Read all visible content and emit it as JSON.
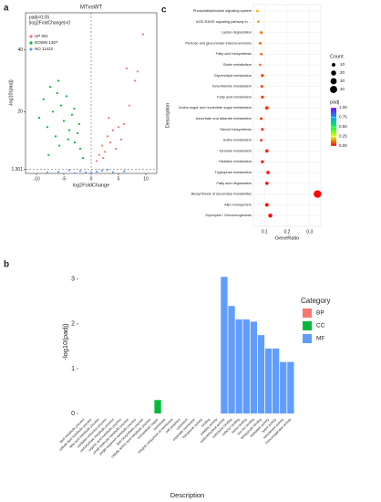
{
  "panel_labels": [
    "a",
    "b",
    "c"
  ],
  "chart_data": [
    {
      "type": "scatter",
      "title": "MTvsWT",
      "legend_title": [
        "padj<0.05",
        "|log2FoldChange|>0"
      ],
      "xlabel": "log2FoldChange",
      "ylabel": "-log10(padj)",
      "xlim": [
        -12,
        12
      ],
      "ylim": [
        0,
        52
      ],
      "xticks": [
        -10,
        -5,
        0,
        5,
        10
      ],
      "yticks": [
        1.301,
        20,
        40
      ],
      "hline": 1.301,
      "vline": 0,
      "series": [
        {
          "name": "UP 801",
          "color": "#f8766d",
          "x": [
            1,
            1.5,
            2,
            2.5,
            3,
            3.5,
            4,
            4.5,
            5,
            5.5,
            6,
            7,
            8,
            9.5,
            6.5,
            8.5,
            3.2,
            2.2
          ],
          "values": [
            4,
            6,
            9,
            7,
            12,
            10,
            14,
            8,
            15,
            11,
            16,
            22,
            30,
            45,
            34,
            33,
            18,
            5
          ]
        },
        {
          "name": "DOWN 1307",
          "color": "#00ba38",
          "x": [
            -9.5,
            -8.7,
            -8,
            -7.5,
            -7,
            -6.5,
            -6,
            -5.5,
            -5,
            -4.5,
            -4,
            -3.5,
            -3,
            -2.5,
            -2,
            -1.5,
            -6.2,
            -5.8,
            -4.2,
            -3.1,
            -2.2,
            -7.8
          ],
          "values": [
            18,
            24,
            15,
            28,
            20,
            12,
            30,
            22,
            17,
            25,
            14,
            19,
            10,
            13,
            8,
            5,
            26,
            9,
            11,
            21,
            16,
            6
          ]
        },
        {
          "name": "NO 11422",
          "color": "#619cff",
          "x": [
            -6,
            -4,
            -2,
            -1,
            0,
            1,
            2,
            4,
            -8,
            6,
            -3,
            3
          ],
          "values": [
            0.5,
            1,
            0.8,
            0.3,
            0.2,
            0.6,
            0.9,
            0.4,
            0.3,
            0.7,
            0.1,
            1.1
          ]
        }
      ]
    },
    {
      "type": "bar",
      "xlabel": "Description",
      "ylabel": "-log10(padj)",
      "legend_title": "Category",
      "group_names": [
        "BP",
        "CC",
        "MF"
      ],
      "group_colors": [
        "#f8766d",
        "#00ba38",
        "#619cff"
      ],
      "ylim": [
        0,
        3.2
      ],
      "yticks": [
        0,
        1,
        2,
        3
      ],
      "categories": [
        "lipid metabolic process",
        "cellular lipid metabolic process",
        "fatty acid metabolic process",
        "oxidation-reduction process",
        "carbohydrate metabolic process",
        "organic acid metabolic process",
        "small molecule metabolic process",
        "single-organism metabolic process",
        "lipid biosynthetic process",
        "cellular amino acid metabolic process",
        "extracellular region",
        "membrane",
        "integral component of membrane",
        "cell periphery",
        "cytoplasm",
        "organelle membrane",
        "transporter activity",
        "binding",
        "catalytic activity",
        "oxidoreductase activity",
        "coenzyme binding",
        "cofactor binding",
        "heme binding",
        "iron ion binding",
        "tetrapyrrole binding",
        "hydrolase activity",
        "lyase activity",
        "transferase activity",
        "monooxygenase activity"
      ],
      "groups": [
        0,
        0,
        0,
        0,
        0,
        0,
        0,
        0,
        0,
        0,
        1,
        1,
        1,
        1,
        1,
        1,
        2,
        2,
        2,
        2,
        2,
        2,
        2,
        2,
        2,
        2,
        2,
        2,
        2
      ],
      "values": [
        0,
        0,
        0,
        0,
        0,
        0,
        0,
        0,
        0,
        0,
        0.3,
        0,
        0,
        0,
        0,
        0,
        0,
        0,
        0,
        3.05,
        2.4,
        2.1,
        2.1,
        2.05,
        1.75,
        1.45,
        1.45,
        1.15,
        1.15
      ]
    },
    {
      "type": "dot",
      "xlabel": "GeneRatio",
      "ylabel": "Description",
      "xlim": [
        0.05,
        0.35
      ],
      "xticks": [
        0.1,
        0.2,
        0.3
      ],
      "categories": [
        "Phosphatidylinositol signaling system",
        "AGE-RAGE signaling pathway in ...",
        "Lysine degradation",
        "Pentose and glucuronate interconversions",
        "Fatty acid biosynthesis",
        "Biotin metabolism",
        "Glycerolipid metabolism",
        "beta-Alanine metabolism",
        "Fatty acid metabolism",
        "Amino sugar and nucleotide sugar metabolism",
        "Ascorbate and aldarate metabolism",
        "Steroid biosynthesis",
        "Sulfur metabolism",
        "Tyrosine metabolism",
        "Histidine metabolism",
        "Tryptophan metabolism",
        "Fatty acid degradation",
        "Biosynthesis of secondary metabolites",
        "ABC transporters",
        "Glycolysis / Gluconeogenesis"
      ],
      "values": [
        0.068,
        0.072,
        0.085,
        0.08,
        0.085,
        0.08,
        0.09,
        0.088,
        0.09,
        0.11,
        0.085,
        0.09,
        0.085,
        0.11,
        0.09,
        0.115,
        0.11,
        0.335,
        0.11,
        0.125
      ],
      "counts": [
        5,
        4,
        6,
        6,
        5,
        4,
        7,
        6,
        7,
        10,
        6,
        6,
        5,
        9,
        7,
        9,
        9,
        45,
        10,
        13
      ],
      "padj": [
        0.15,
        0.12,
        0.1,
        0.1,
        0.08,
        0.08,
        0.06,
        0.06,
        0.05,
        0.05,
        0.04,
        0.04,
        0.03,
        0.03,
        0.02,
        0.02,
        0.015,
        0.005,
        0.005,
        0.002
      ],
      "size_legend": {
        "title": "Count",
        "ticks": [
          10,
          20,
          30,
          40
        ]
      },
      "color_legend": {
        "title": "padj",
        "ticks": [
          {
            "value": 1,
            "label": "1.00"
          },
          {
            "value": 0.75,
            "label": "0.75"
          },
          {
            "value": 0.5,
            "label": "0.50"
          },
          {
            "value": 0.25,
            "label": "0.25"
          },
          {
            "value": 0,
            "label": "0.00"
          }
        ]
      }
    }
  ]
}
